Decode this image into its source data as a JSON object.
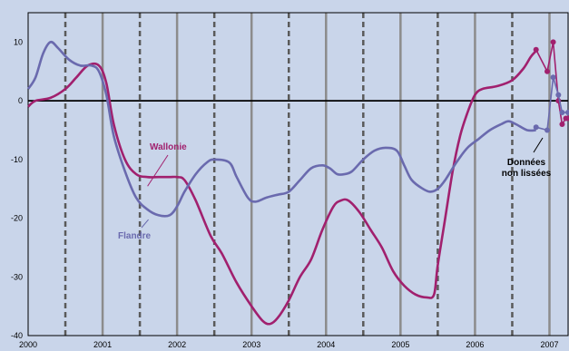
{
  "chart_data": {
    "type": "line",
    "title": "",
    "xlabel": "",
    "ylabel": "",
    "xlim": [
      2000.0,
      2007.25
    ],
    "ylim": [
      -40,
      15
    ],
    "y_ticks": [
      10,
      0,
      -10,
      -20,
      -30,
      -40
    ],
    "x_ticks": [
      "2000",
      "2001",
      "2002",
      "2003",
      "2004",
      "2005",
      "2006",
      "2007"
    ],
    "grid": "vertical solid lines at each year, dashed lines at mid-year",
    "colors": {
      "background": "#c9d5ea",
      "plot_area": "#c9d5ea",
      "grid": "#8c8c8c",
      "wallonie": "#a1206e",
      "flandre": "#6a6aae",
      "axis": "#000000"
    },
    "series": [
      {
        "name": "Wallonie",
        "color": "#a1206e",
        "x": [
          2000.0,
          2000.1,
          2000.3,
          2000.5,
          2000.65,
          2000.8,
          2000.95,
          2001.05,
          2001.15,
          2001.3,
          2001.45,
          2001.6,
          2001.75,
          2001.9,
          2002.0,
          2002.1,
          2002.25,
          2002.45,
          2002.6,
          2002.8,
          2003.0,
          2003.15,
          2003.25,
          2003.35,
          2003.5,
          2003.65,
          2003.8,
          2003.95,
          2004.1,
          2004.2,
          2004.3,
          2004.45,
          2004.6,
          2004.75,
          2004.9,
          2005.05,
          2005.2,
          2005.35,
          2005.45,
          2005.5,
          2005.6,
          2005.7,
          2005.8,
          2005.9,
          2006.0,
          2006.1,
          2006.3,
          2006.5,
          2006.65,
          2006.75,
          2006.82
        ],
        "y": [
          -1,
          0,
          0.5,
          2,
          4,
          6,
          6,
          3,
          -4,
          -10,
          -12.5,
          -13,
          -13,
          -13,
          -13,
          -13.5,
          -17,
          -23,
          -26,
          -31,
          -35,
          -37.5,
          -38,
          -37,
          -34,
          -30,
          -27,
          -22,
          -18,
          -17,
          -17,
          -19,
          -22,
          -25,
          -29,
          -31.5,
          -33,
          -33.5,
          -33,
          -28,
          -20,
          -12,
          -6,
          -2,
          1,
          2,
          2.5,
          3.5,
          5.5,
          7.5,
          8.5
        ]
      },
      {
        "name": "Flandre",
        "color": "#6a6aae",
        "x": [
          2000.0,
          2000.1,
          2000.2,
          2000.3,
          2000.4,
          2000.55,
          2000.7,
          2000.85,
          2000.95,
          2001.05,
          2001.15,
          2001.3,
          2001.45,
          2001.6,
          2001.75,
          2001.9,
          2002.0,
          2002.1,
          2002.25,
          2002.4,
          2002.5,
          2002.7,
          2002.8,
          2002.95,
          2003.05,
          2003.2,
          2003.35,
          2003.5,
          2003.65,
          2003.8,
          2003.95,
          2004.05,
          2004.15,
          2004.25,
          2004.35,
          2004.5,
          2004.65,
          2004.8,
          2004.95,
          2005.05,
          2005.15,
          2005.3,
          2005.4,
          2005.5,
          2005.6,
          2005.75,
          2005.9,
          2006.05,
          2006.2,
          2006.35,
          2006.45,
          2006.55,
          2006.7,
          2006.82
        ],
        "y": [
          2,
          4,
          8,
          10,
          9,
          7,
          6,
          6,
          5,
          1,
          -6,
          -12,
          -16.5,
          -18.5,
          -19.5,
          -19.5,
          -18,
          -15.5,
          -12.5,
          -10.5,
          -10,
          -10.5,
          -13,
          -16.5,
          -17.2,
          -16.5,
          -16,
          -15.5,
          -13.5,
          -11.5,
          -11,
          -11.5,
          -12.5,
          -12.5,
          -12,
          -10,
          -8.5,
          -8,
          -8.5,
          -11,
          -13.5,
          -15,
          -15.5,
          -15,
          -13.5,
          -10.5,
          -8,
          -6.5,
          -5,
          -4,
          -3.5,
          -4,
          -5,
          -5
        ]
      },
      {
        "name": "Wallonie (données non lissées)",
        "color": "#a1206e",
        "x": [
          2006.82,
          2006.97,
          2007.05,
          2007.12,
          2007.17,
          2007.22,
          2007.25
        ],
        "y": [
          8.7,
          5,
          10,
          0,
          -4,
          -3,
          -3
        ]
      },
      {
        "name": "Flandre (données non lissées)",
        "color": "#6a6aae",
        "x": [
          2006.82,
          2006.97,
          2007.05,
          2007.12,
          2007.17,
          2007.25
        ],
        "y": [
          -4.5,
          -5,
          4,
          1,
          -2,
          -2
        ]
      }
    ],
    "annotations": [
      {
        "text": "Wallonie",
        "color": "#a1206e",
        "points_to": [
          2001.75,
          -13
        ]
      },
      {
        "text": "Flandre",
        "color": "#6a6aae",
        "points_to": [
          2001.25,
          -19
        ]
      },
      {
        "text_lines": [
          "Données",
          "non lissées"
        ],
        "color": "#000000",
        "points_to": [
          2006.82,
          -5
        ]
      }
    ]
  }
}
